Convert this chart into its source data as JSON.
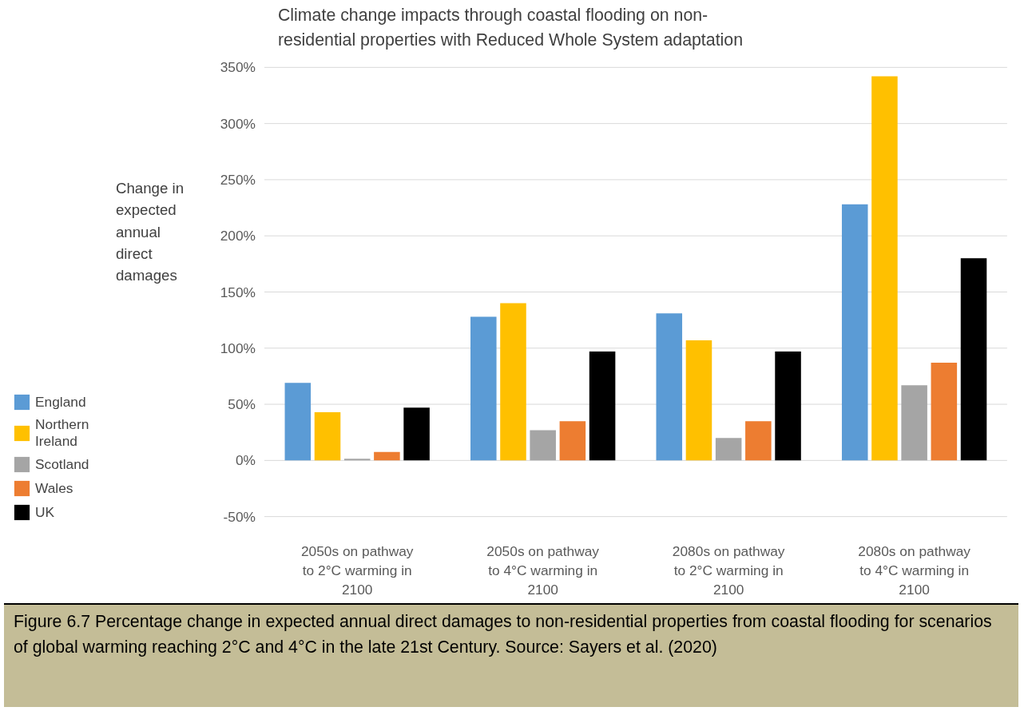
{
  "chart_data": {
    "type": "bar",
    "title": "Climate change impacts through coastal flooding on non-residential properties with Reduced Whole System adaptation",
    "ylabel": "Change in expected annual direct damages",
    "categories": [
      "2050s on pathway to 2°C warming in 2100",
      "2050s on pathway to 4°C warming in 2100",
      "2080s on pathway to 2°C warming in 2100",
      "2080s on pathway to 4°C warming in 2100"
    ],
    "series": [
      {
        "name": "England",
        "color": "#5b9bd5",
        "values": [
          69,
          128,
          131,
          228
        ]
      },
      {
        "name": "Northern Ireland",
        "color": "#ffc000",
        "values": [
          43,
          140,
          107,
          342
        ]
      },
      {
        "name": "Scotland",
        "color": "#a5a5a5",
        "values": [
          1.5,
          27,
          20,
          67
        ]
      },
      {
        "name": "Wales",
        "color": "#ed7d31",
        "values": [
          7.5,
          35,
          35,
          87
        ]
      },
      {
        "name": "UK",
        "color": "#000000",
        "values": [
          47,
          97,
          97,
          180
        ]
      }
    ],
    "ylim": [
      -50,
      350
    ],
    "yticks": [
      {
        "value": -50,
        "label": "-50%"
      },
      {
        "value": 0,
        "label": "0%"
      },
      {
        "value": 50,
        "label": "50%"
      },
      {
        "value": 100,
        "label": "100%"
      },
      {
        "value": 150,
        "label": "150%"
      },
      {
        "value": 200,
        "label": "200%"
      },
      {
        "value": 250,
        "label": "250%"
      },
      {
        "value": 300,
        "label": "300%"
      },
      {
        "value": 350,
        "label": "350%"
      }
    ],
    "grid": "y",
    "legend": "bottom left",
    "annotations": [
      "Figure 6.7 Percentage change in expected annual direct damages to non-residential properties from coastal flooding for scenarios of global warming reaching 2°C and 4°C in the late 21st Century. Source: Sayers et al. (2020)"
    ]
  }
}
